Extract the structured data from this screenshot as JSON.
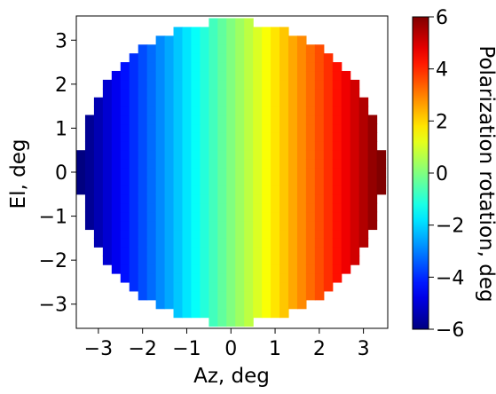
{
  "chart_data": {
    "type": "heatmap",
    "title": "",
    "xlabel": "Az, deg",
    "ylabel": "El, deg",
    "xlim": [
      -3.5,
      3.55
    ],
    "ylim": [
      -3.55,
      3.55
    ],
    "x_ticks": [
      -3,
      -2,
      -1,
      0,
      1,
      2,
      3
    ],
    "x_tick_labels": [
      "−3",
      "−2",
      "−1",
      "0",
      "1",
      "2",
      "3"
    ],
    "y_ticks": [
      -3,
      -2,
      -1,
      0,
      1,
      2,
      3
    ],
    "y_tick_labels": [
      "−3",
      "−2",
      "−1",
      "0",
      "1",
      "2",
      "3"
    ],
    "grid": false,
    "colormap": "jet",
    "color_range": [
      -6,
      6
    ],
    "colorbar_label": "Polarization rotation, deg",
    "colorbar_ticks": [
      -6,
      -4,
      -2,
      0,
      2,
      4,
      6
    ],
    "colorbar_tick_labels": [
      "−6",
      "−4",
      "−2",
      "0",
      "2",
      "4",
      "6"
    ],
    "cell_size_deg": 0.2,
    "disk_radius_deg": 3.45,
    "value_model": "polarization rotation ≈ 1.8 × Az (deg), constant along El",
    "value_per_az_deg": 1.8
  }
}
